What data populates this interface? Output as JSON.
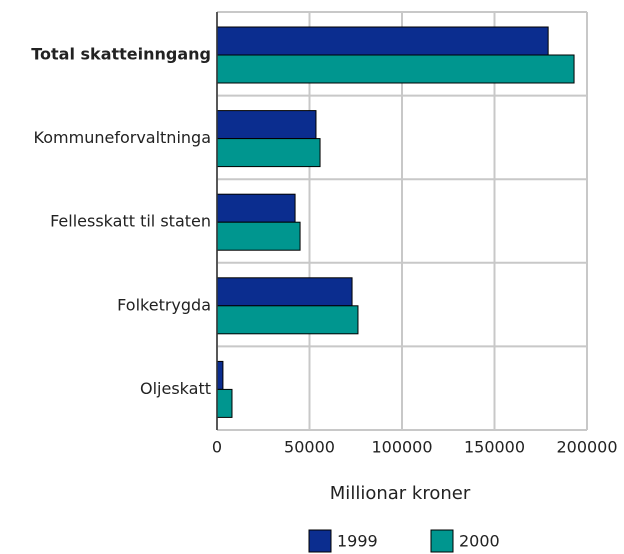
{
  "chart_data": {
    "type": "hbar",
    "categories": [
      "Total skatteinngang",
      "Kommuneforvaltninga",
      "Fellesskatt til staten",
      "Folketrygda",
      "Oljeskatt"
    ],
    "series": [
      {
        "name": "1999",
        "color": "#0b2d8f",
        "values": [
          179000,
          53500,
          42200,
          73000,
          3200
        ]
      },
      {
        "name": "2000",
        "color": "#00968f",
        "values": [
          193000,
          55700,
          44900,
          76200,
          8100
        ]
      }
    ],
    "xlim": [
      0,
      200000
    ],
    "xticks": [
      0,
      50000,
      100000,
      150000,
      200000
    ],
    "xlabel": "Millionar kroner",
    "grid": true
  }
}
